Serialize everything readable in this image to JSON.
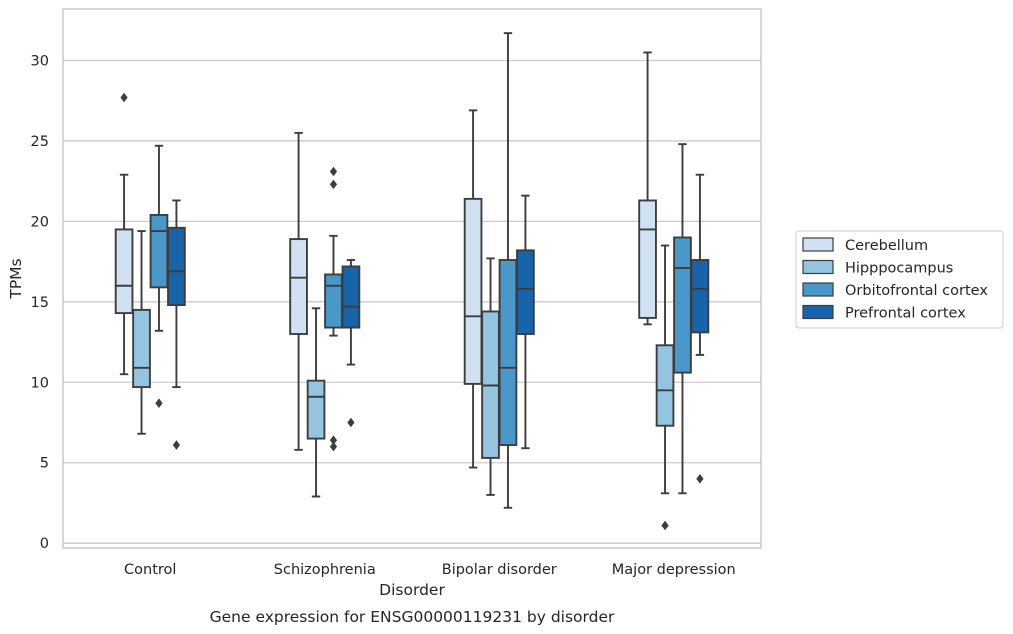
{
  "chart_data": {
    "type": "boxplot",
    "title": "Gene expression for ENSG00000119231 by disorder",
    "xlabel": "Disorder",
    "ylabel": "TPMs",
    "ylim": [
      -0.3,
      33.2
    ],
    "yticks": [
      0,
      5,
      10,
      15,
      20,
      25,
      30
    ],
    "grid": true,
    "legend_position": "right",
    "categories": [
      "Control",
      "Schizophrenia",
      "Bipolar disorder",
      "Major depression"
    ],
    "series": [
      {
        "name": "Cerebellum",
        "color": "#d0e1f2",
        "boxes": [
          {
            "whislo": 10.5,
            "q1": 14.3,
            "med": 16.0,
            "q3": 19.5,
            "whishi": 22.9,
            "fliers": [
              27.7
            ]
          },
          {
            "whislo": 5.8,
            "q1": 13.0,
            "med": 16.5,
            "q3": 18.9,
            "whishi": 25.5,
            "fliers": []
          },
          {
            "whislo": 4.7,
            "q1": 9.9,
            "med": 14.1,
            "q3": 21.4,
            "whishi": 26.9,
            "fliers": []
          },
          {
            "whislo": 13.6,
            "q1": 14.0,
            "med": 19.5,
            "q3": 21.3,
            "whishi": 30.5,
            "fliers": []
          }
        ]
      },
      {
        "name": "Hipppocampus",
        "color": "#94c4df",
        "boxes": [
          {
            "whislo": 6.8,
            "q1": 9.7,
            "med": 10.9,
            "q3": 14.5,
            "whishi": 19.4,
            "fliers": []
          },
          {
            "whislo": 2.9,
            "q1": 6.5,
            "med": 9.1,
            "q3": 10.1,
            "whishi": 14.6,
            "fliers": []
          },
          {
            "whislo": 3.0,
            "q1": 5.3,
            "med": 9.8,
            "q3": 14.4,
            "whishi": 17.7,
            "fliers": []
          },
          {
            "whislo": 3.1,
            "q1": 7.3,
            "med": 9.5,
            "q3": 12.3,
            "whishi": 18.5,
            "fliers": [
              1.1
            ]
          }
        ]
      },
      {
        "name": "Orbitofrontal cortex",
        "color": "#4a98c9",
        "boxes": [
          {
            "whislo": 13.2,
            "q1": 15.9,
            "med": 19.4,
            "q3": 20.4,
            "whishi": 24.7,
            "fliers": [
              8.7
            ]
          },
          {
            "whislo": 12.9,
            "q1": 13.4,
            "med": 16.0,
            "q3": 16.7,
            "whishi": 19.1,
            "fliers": [
              23.1,
              22.3,
              6.4,
              6.0
            ]
          },
          {
            "whislo": 2.2,
            "q1": 6.1,
            "med": 10.9,
            "q3": 17.6,
            "whishi": 31.7,
            "fliers": []
          },
          {
            "whislo": 3.1,
            "q1": 10.6,
            "med": 17.1,
            "q3": 19.0,
            "whishi": 24.8,
            "fliers": []
          }
        ]
      },
      {
        "name": "Prefrontal cortex",
        "color": "#1764ab",
        "boxes": [
          {
            "whislo": 9.7,
            "q1": 14.8,
            "med": 16.9,
            "q3": 19.6,
            "whishi": 21.3,
            "fliers": [
              6.1
            ]
          },
          {
            "whislo": 11.1,
            "q1": 13.4,
            "med": 14.7,
            "q3": 17.2,
            "whishi": 17.6,
            "fliers": [
              7.5
            ]
          },
          {
            "whislo": 5.9,
            "q1": 13.0,
            "med": 15.8,
            "q3": 18.2,
            "whishi": 21.6,
            "fliers": []
          },
          {
            "whislo": 11.7,
            "q1": 13.1,
            "med": 15.8,
            "q3": 17.6,
            "whishi": 22.9,
            "fliers": [
              4.0
            ]
          }
        ]
      }
    ]
  }
}
